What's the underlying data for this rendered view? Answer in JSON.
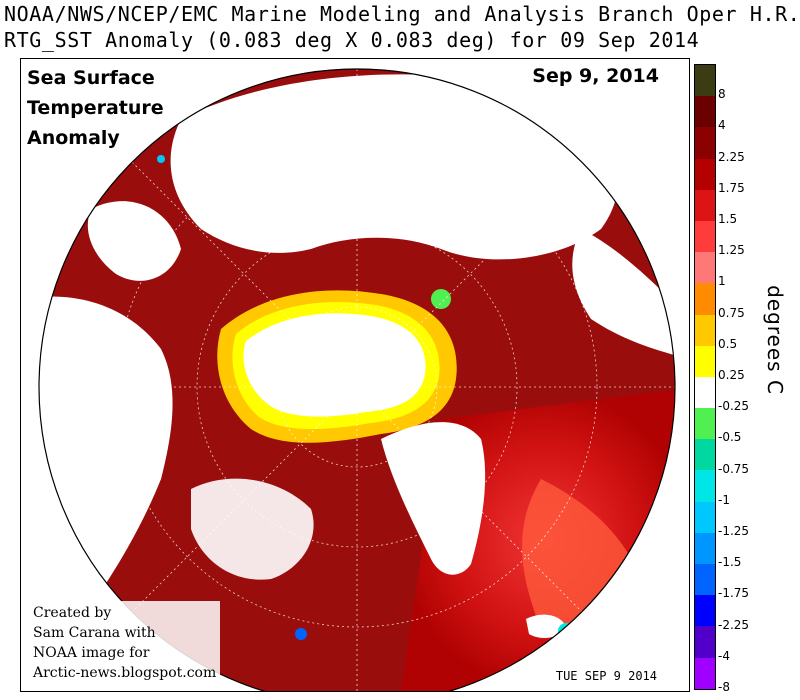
{
  "header": {
    "line1": "NOAA/NWS/NCEP/EMC Marine Modeling and Analysis Branch Oper H.R.",
    "line2": "RTG_SST Anomaly (0.083 deg X 0.083 deg) for 09 Sep 2014"
  },
  "map": {
    "title_lines": [
      "Sea Surface",
      "Temperature",
      "Anomaly"
    ],
    "date_label": "Sep 9, 2014",
    "stamp": "TUE SEP 9 2014",
    "credit_lines": [
      "Created by",
      "Sam Carana with",
      "NOAA image for",
      "Arctic-news.blogspot.com"
    ]
  },
  "legend": {
    "unit": "degrees C",
    "bands": [
      {
        "label": "8",
        "color": "#3c3c14"
      },
      {
        "label": "4",
        "color": "#6b0000"
      },
      {
        "label": "2.25",
        "color": "#8b0000"
      },
      {
        "label": "1.75",
        "color": "#b40000"
      },
      {
        "label": "1.5",
        "color": "#dc1414"
      },
      {
        "label": "1.25",
        "color": "#ff3c3c"
      },
      {
        "label": "1",
        "color": "#ff7878"
      },
      {
        "label": "0.75",
        "color": "#ff8c00"
      },
      {
        "label": "0.5",
        "color": "#ffc800"
      },
      {
        "label": "0.25",
        "color": "#ffff00"
      },
      {
        "label": "-0.25",
        "color": "#ffffff"
      },
      {
        "label": "-0.5",
        "color": "#50f050"
      },
      {
        "label": "-0.75",
        "color": "#00d8a0"
      },
      {
        "label": "-1",
        "color": "#00e6e6"
      },
      {
        "label": "-1.25",
        "color": "#00c8ff"
      },
      {
        "label": "-1.5",
        "color": "#0096ff"
      },
      {
        "label": "-1.75",
        "color": "#0064ff"
      },
      {
        "label": "-2.25",
        "color": "#0000ff"
      },
      {
        "label": "-4",
        "color": "#5000c8"
      },
      {
        "label": "-8",
        "color": "#a000ff"
      }
    ]
  }
}
